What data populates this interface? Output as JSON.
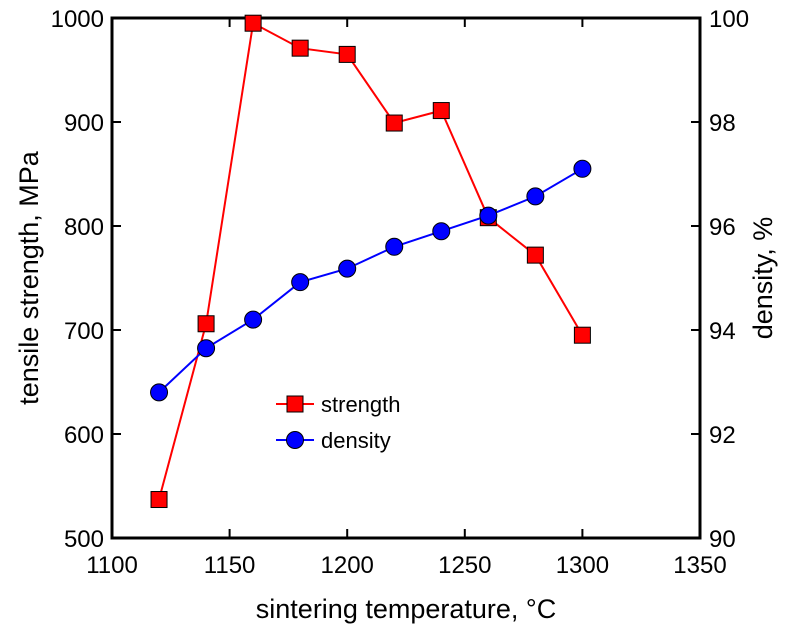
{
  "chart_data": {
    "type": "line",
    "xlabel": "sintering temperature, °C",
    "ylabel_left": "tensile strength, MPa",
    "ylabel_right": "density, %",
    "xlim": [
      1100,
      1350
    ],
    "ylim_left": [
      500,
      1000
    ],
    "ylim_right": [
      90,
      100
    ],
    "x_ticks": [
      1100,
      1150,
      1200,
      1250,
      1300,
      1350
    ],
    "y_left_ticks": [
      500,
      600,
      700,
      800,
      900,
      1000
    ],
    "y_right_ticks": [
      90,
      92,
      94,
      96,
      98,
      100
    ],
    "x_tick_labels": [
      "1100",
      "1150",
      "1200",
      "1250",
      "1300",
      "1350"
    ],
    "y_left_tick_labels": [
      "500",
      "600",
      "700",
      "800",
      "900",
      "1000"
    ],
    "y_right_tick_labels": [
      "90",
      "92",
      "94",
      "96",
      "98",
      "100"
    ],
    "grid": false,
    "legend_position": "center-left",
    "series": [
      {
        "name": "strength",
        "axis": "left",
        "color": "#ff0000",
        "marker": "square",
        "x": [
          1120,
          1140,
          1160,
          1180,
          1200,
          1220,
          1240,
          1260,
          1280,
          1300
        ],
        "y": [
          537,
          706,
          995,
          971,
          965,
          899,
          911,
          808,
          772,
          695
        ]
      },
      {
        "name": "density",
        "axis": "right",
        "color": "#0000ff",
        "marker": "circle",
        "x": [
          1120,
          1140,
          1160,
          1180,
          1200,
          1220,
          1240,
          1260,
          1280,
          1300
        ],
        "y": [
          92.8,
          93.65,
          94.2,
          94.92,
          95.18,
          95.6,
          95.9,
          96.2,
          96.57,
          97.1
        ]
      }
    ]
  }
}
